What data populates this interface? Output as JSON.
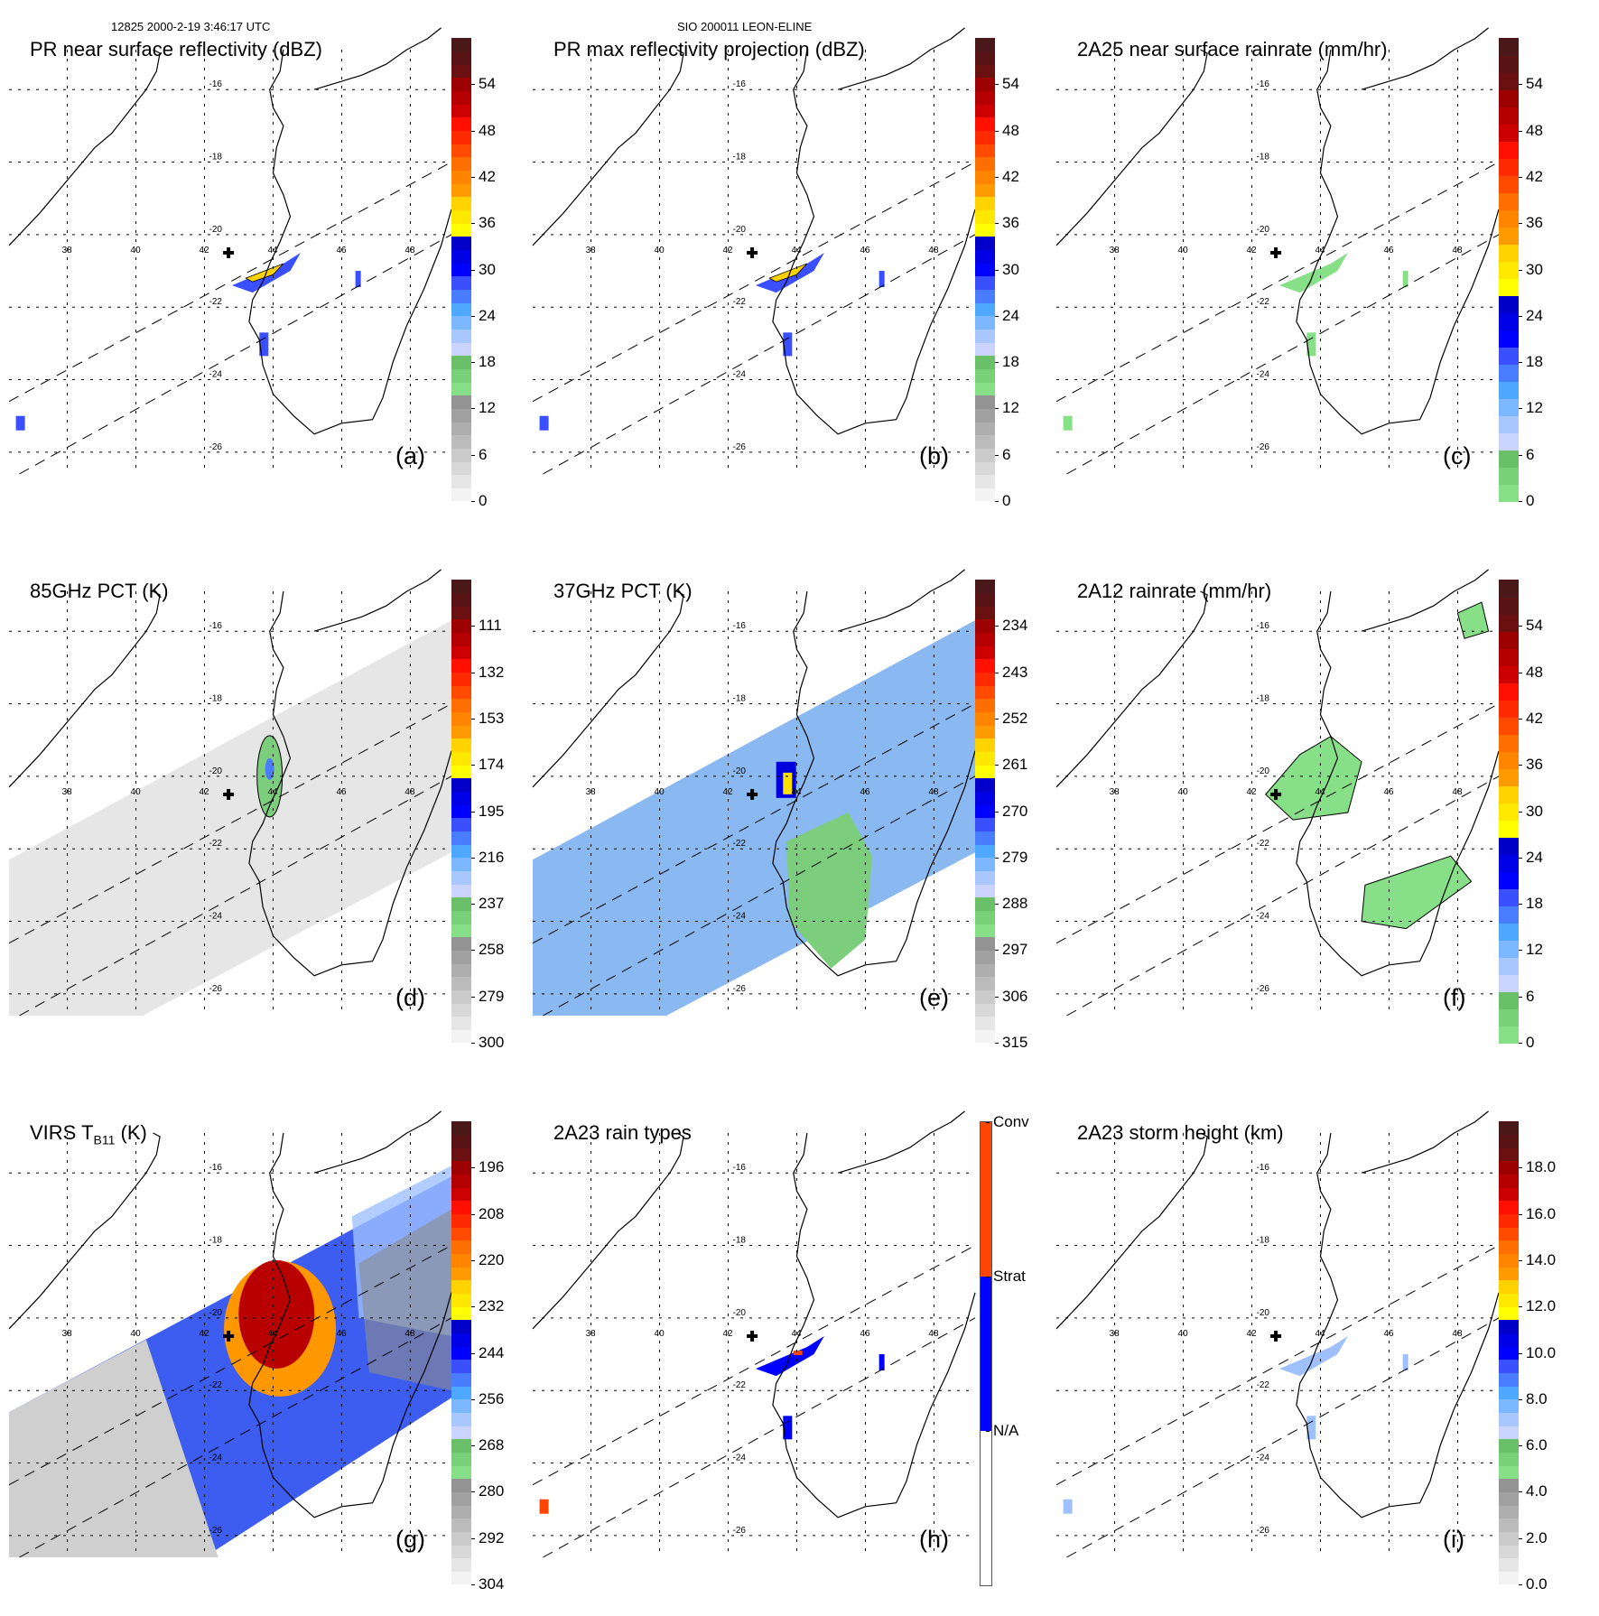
{
  "header": {
    "left": "12825 2000-2-19 3:46:17 UTC",
    "center": "SIO 200011 LEON-ELINE"
  },
  "chart_data": [
    {
      "type": "heatmap",
      "id": "a",
      "panel_label": "(a)",
      "title": "PR near surface reflectivity (dBZ)",
      "title_sub": "",
      "title_suffix": "",
      "colorbar": {
        "ticks": [
          "54",
          "48",
          "42",
          "36",
          "30",
          "24",
          "18",
          "12",
          "6",
          "0"
        ],
        "range": [
          0,
          60
        ],
        "scheme": "dbz"
      },
      "lon_ticks": [
        "38",
        "40",
        "42",
        "44",
        "46",
        "48"
      ],
      "lat_ticks": [
        "-16",
        "-18",
        "-20",
        "-22",
        "-24",
        "-26"
      ],
      "swath": "pr",
      "features": "Narrow PR swath with echoes near 44E,-21 (up to ~36-42 dBZ), scattered weak echoes near 46.5E,-21.2, 44E,-23, and 37E,-25"
    },
    {
      "type": "heatmap",
      "id": "b",
      "panel_label": "(b)",
      "title": "PR max reflectivity projection (dBZ)",
      "title_sub": "",
      "title_suffix": "",
      "colorbar": {
        "ticks": [
          "54",
          "48",
          "42",
          "36",
          "30",
          "24",
          "18",
          "12",
          "6",
          "0"
        ],
        "range": [
          0,
          60
        ],
        "scheme": "dbz"
      },
      "lon_ticks": [
        "38",
        "40",
        "42",
        "44",
        "46",
        "48"
      ],
      "lat_ticks": [
        "-16",
        "-18",
        "-20",
        "-22",
        "-24",
        "-26"
      ],
      "swath": "pr",
      "features": "Echo tops up to ~42 dBZ near 44E,-21; cells near 46.5E,-21.2, 45E,-22 and 43.5E,-23"
    },
    {
      "type": "heatmap",
      "id": "c",
      "panel_label": "(c)",
      "title": "2A25 near surface rainrate (mm/hr)",
      "title_sub": "",
      "title_suffix": "",
      "colorbar": {
        "ticks": [
          "54",
          "48",
          "42",
          "36",
          "30",
          "24",
          "18",
          "12",
          "6",
          "0"
        ],
        "range": [
          0,
          60
        ],
        "scheme": "rain"
      },
      "lon_ticks": [
        "38",
        "40",
        "42",
        "44",
        "46",
        "48"
      ],
      "lat_ticks": [
        "-16",
        "-18",
        "-20",
        "-22",
        "-24",
        "-26"
      ],
      "swath": "pr",
      "features": "Mostly light rain (0-6 mm/hr) within PR swath"
    },
    {
      "type": "heatmap",
      "id": "d",
      "panel_label": "(d)",
      "title": "85GHz PCT (K)",
      "title_sub": "",
      "title_suffix": "",
      "colorbar": {
        "ticks": [
          "111",
          "132",
          "153",
          "174",
          "195",
          "216",
          "237",
          "258",
          "279",
          "300"
        ],
        "range": [
          90,
          300
        ],
        "scheme": "tb"
      },
      "lon_ticks": [
        "38",
        "40",
        "42",
        "44",
        "46",
        "48"
      ],
      "lat_ticks": [
        "-16",
        "-18",
        "-20",
        "-22",
        "-24",
        "-26"
      ],
      "swath": "tmi",
      "features": "Mostly 260-300 K grey background; depressed PCT (<240 K) along west Madagascar coast near 43.5E,-19 to -21"
    },
    {
      "type": "heatmap",
      "id": "e",
      "panel_label": "(e)",
      "title": "37GHz PCT (K)",
      "title_sub": "",
      "title_suffix": "",
      "colorbar": {
        "ticks": [
          "234",
          "243",
          "252",
          "261",
          "270",
          "279",
          "288",
          "297",
          "306",
          "315"
        ],
        "range": [
          225,
          315
        ],
        "scheme": "tb"
      },
      "lon_ticks": [
        "38",
        "40",
        "42",
        "44",
        "46",
        "48"
      ],
      "lat_ticks": [
        "-16",
        "-18",
        "-20",
        "-22",
        "-24",
        "-26"
      ],
      "swath": "tmi",
      "features": "Blue (270-285 K) ocean background, green (285-290 K) over land, minimum ~261 K near 43.5E,-20"
    },
    {
      "type": "heatmap",
      "id": "f",
      "panel_label": "(f)",
      "title": "2A12 rainrate (mm/hr)",
      "title_sub": "",
      "title_suffix": "",
      "colorbar": {
        "ticks": [
          "54",
          "48",
          "42",
          "36",
          "30",
          "24",
          "18",
          "12",
          "6",
          "0"
        ],
        "range": [
          0,
          60
        ],
        "scheme": "rain"
      },
      "lon_ticks": [
        "38",
        "40",
        "42",
        "44",
        "46",
        "48"
      ],
      "lat_ticks": [
        "-16",
        "-18",
        "-20",
        "-22",
        "-24",
        "-26"
      ],
      "swath": "tmi",
      "features": "Widespread light rain (0-6 mm/hr) over western and southern Madagascar"
    },
    {
      "type": "heatmap",
      "id": "g",
      "panel_label": "(g)",
      "title": "VIRS T",
      "title_sub": "B11",
      "title_suffix": " (K)",
      "colorbar": {
        "ticks": [
          "196",
          "208",
          "220",
          "232",
          "244",
          "256",
          "268",
          "280",
          "292",
          "304"
        ],
        "range": [
          184,
          304
        ],
        "scheme": "tb"
      },
      "lon_ticks": [
        "38",
        "40",
        "42",
        "44",
        "46",
        "48"
      ],
      "lat_ticks": [
        "-16",
        "-18",
        "-20",
        "-22",
        "-24",
        "-26"
      ],
      "swath": "virs",
      "features": "Cold cloud tops (<200 K) over 43.5-45E,-18.5 to -21; surrounding 220-260 K cloud shield"
    },
    {
      "type": "heatmap",
      "id": "h",
      "panel_label": "(h)",
      "title": "2A23 rain types",
      "title_sub": "",
      "title_suffix": "",
      "colorbar": {
        "categories": [
          "Conv",
          "Strat",
          "N/A"
        ],
        "colors": [
          "#ff4500",
          "#0000ff",
          "#ffffff"
        ],
        "scheme": "categorical"
      },
      "lon_ticks": [
        "38",
        "40",
        "42",
        "44",
        "46",
        "48"
      ],
      "lat_ticks": [
        "-16",
        "-18",
        "-20",
        "-22",
        "-24",
        "-26"
      ],
      "swath": "pr",
      "features": "Mostly stratiform rain with a few convective pixels near 44E,-21"
    },
    {
      "type": "heatmap",
      "id": "i",
      "panel_label": "(i)",
      "title": "2A23 storm height (km)",
      "title_sub": "",
      "title_suffix": "",
      "colorbar": {
        "ticks": [
          "18.0",
          "16.0",
          "14.0",
          "12.0",
          "10.0",
          "8.0",
          "6.0",
          "4.0",
          "2.0",
          "0.0"
        ],
        "range": [
          0,
          20
        ],
        "scheme": "height"
      },
      "lon_ticks": [
        "38",
        "40",
        "42",
        "44",
        "46",
        "48"
      ],
      "lat_ticks": [
        "-16",
        "-18",
        "-20",
        "-22",
        "-24",
        "-26"
      ],
      "swath": "pr",
      "features": "Storm heights mostly 4-8 km"
    }
  ],
  "colors": {
    "dbz_scale": [
      "#f4f4f4",
      "#e6e6e6",
      "#d8d8d8",
      "#cacaca",
      "#bcbcbc",
      "#aeaeae",
      "#a0a0a0",
      "#939393",
      "#87e087",
      "#78d078",
      "#69c069",
      "#cad4ff",
      "#a8c8ff",
      "#7cb8ff",
      "#4ea8ff",
      "#4a7cff",
      "#3a50ff",
      "#0000ff",
      "#0000e6",
      "#0000c8",
      "#ffff00",
      "#ffe800",
      "#ffd200",
      "#ff9a00",
      "#ff8400",
      "#ff6e00",
      "#ff4a00",
      "#ff2a00",
      "#ff1000",
      "#cc0000",
      "#b40000",
      "#9c0000",
      "#6a1010",
      "#581414",
      "#4a1818"
    ],
    "rain_scale": [
      "#87e087",
      "#78d078",
      "#69c069",
      "#cad4ff",
      "#a8c8ff",
      "#7cb8ff",
      "#4ea8ff",
      "#4a7cff",
      "#3a50ff",
      "#0000ff",
      "#0000e6",
      "#0000c8",
      "#ffff00",
      "#ffe800",
      "#ffd200",
      "#ff9a00",
      "#ff8400",
      "#ff6e00",
      "#ff4a00",
      "#ff2a00",
      "#ff1000",
      "#cc0000",
      "#b40000",
      "#9c0000",
      "#6a1010",
      "#581414",
      "#4a1818"
    ],
    "grid": "#000000"
  }
}
